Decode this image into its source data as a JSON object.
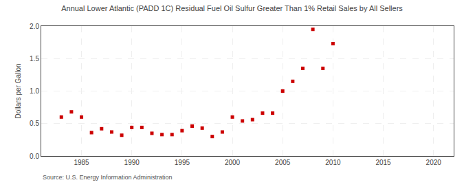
{
  "chart_data": {
    "type": "scatter",
    "title": "Annual Lower Atlantic (PADD 1C) Residual Fuel Oil Sulfur Greater Than 1% Retail Sales by All Sellers",
    "ylabel": "Dollars per Gallon",
    "annotations": [
      "Source: U.S. Energy Information Administration"
    ],
    "color": "#cc0000",
    "marker": "square",
    "grid": true,
    "xlim": [
      1981,
      2022
    ],
    "ylim": [
      0.0,
      2.0
    ],
    "xticks": [
      1985,
      1990,
      1995,
      2000,
      2005,
      2010,
      2015,
      2020
    ],
    "yticks": [
      {
        "value": 0.0,
        "label": "0.0"
      },
      0.5,
      {
        "value": 1.0,
        "label": "1.0"
      },
      1.5,
      {
        "value": 2.0,
        "label": "2.0"
      }
    ],
    "x": [
      1983,
      1984,
      1985,
      1986,
      1987,
      1988,
      1989,
      1990,
      1991,
      1992,
      1993,
      1994,
      1995,
      1996,
      1997,
      1998,
      1999,
      2000,
      2001,
      2002,
      2003,
      2004,
      2005,
      2006,
      2007,
      2008,
      2009,
      2010
    ],
    "values": [
      0.6,
      0.68,
      0.6,
      0.36,
      0.42,
      0.37,
      0.32,
      0.44,
      0.44,
      0.35,
      0.33,
      0.33,
      0.39,
      0.46,
      0.43,
      0.3,
      0.37,
      0.6,
      0.54,
      0.56,
      0.66,
      0.66,
      1.0,
      1.15,
      1.35,
      1.95,
      1.35,
      1.73
    ]
  }
}
